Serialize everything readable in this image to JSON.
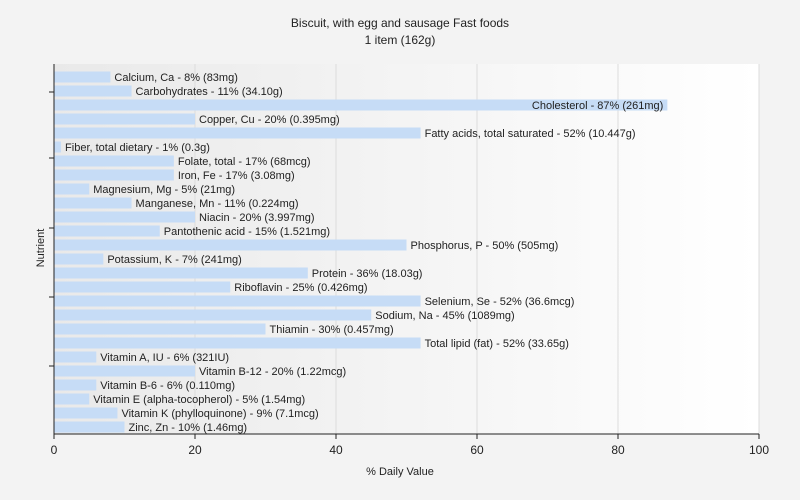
{
  "chart_data": {
    "type": "bar",
    "orientation": "horizontal",
    "title": "Biscuit, with egg and sausage Fast foods",
    "subtitle": "1 item (162g)",
    "xlabel": "% Daily Value",
    "ylabel": "Nutrient",
    "xlim": [
      0,
      100
    ],
    "xticks": [
      0,
      20,
      40,
      60,
      80,
      100
    ],
    "grid": true,
    "bar_color": "#c6dcf6",
    "categories": [
      "Calcium, Ca",
      "Carbohydrates",
      "Cholesterol",
      "Copper, Cu",
      "Fatty acids, total saturated",
      "Fiber, total dietary",
      "Folate, total",
      "Iron, Fe",
      "Magnesium, Mg",
      "Manganese, Mn",
      "Niacin",
      "Pantothenic acid",
      "Phosphorus, P",
      "Potassium, K",
      "Protein",
      "Riboflavin",
      "Selenium, Se",
      "Sodium, Na",
      "Thiamin",
      "Total lipid (fat)",
      "Vitamin A, IU",
      "Vitamin B-12",
      "Vitamin B-6",
      "Vitamin E (alpha-tocopherol)",
      "Vitamin K (phylloquinone)",
      "Zinc, Zn"
    ],
    "values": [
      8,
      11,
      87,
      20,
      52,
      1,
      17,
      17,
      5,
      11,
      20,
      15,
      50,
      7,
      36,
      25,
      52,
      45,
      30,
      52,
      6,
      20,
      6,
      5,
      9,
      10
    ],
    "labels": [
      "Calcium, Ca - 8% (83mg)",
      "Carbohydrates - 11% (34.10g)",
      "Cholesterol - 87% (261mg)",
      "Copper, Cu - 20% (0.395mg)",
      "Fatty acids, total saturated - 52% (10.447g)",
      "Fiber, total dietary - 1% (0.3g)",
      "Folate, total - 17% (68mcg)",
      "Iron, Fe - 17% (3.08mg)",
      "Magnesium, Mg - 5% (21mg)",
      "Manganese, Mn - 11% (0.224mg)",
      "Niacin - 20% (3.997mg)",
      "Pantothenic acid - 15% (1.521mg)",
      "Phosphorus, P - 50% (505mg)",
      "Potassium, K - 7% (241mg)",
      "Protein - 36% (18.03g)",
      "Riboflavin - 25% (0.426mg)",
      "Selenium, Se - 52% (36.6mcg)",
      "Sodium, Na - 45% (1089mg)",
      "Thiamin - 30% (0.457mg)",
      "Total lipid (fat) - 52% (33.65g)",
      "Vitamin A, IU - 6% (321IU)",
      "Vitamin B-12 - 20% (1.22mcg)",
      "Vitamin B-6 - 6% (0.110mg)",
      "Vitamin E (alpha-tocopherol) - 5% (1.54mg)",
      "Vitamin K (phylloquinone) - 9% (7.1mcg)",
      "Zinc, Zn - 10% (1.46mg)"
    ]
  }
}
